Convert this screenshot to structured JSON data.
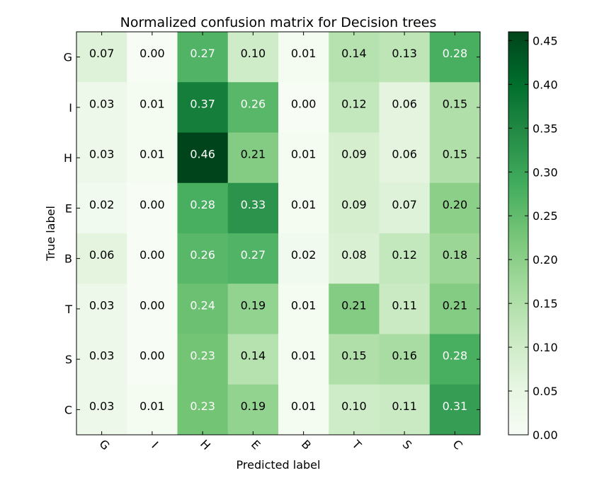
{
  "chart_data": {
    "type": "heatmap",
    "title": "Normalized confusion matrix for Decision trees",
    "xlabel": "Predicted label",
    "ylabel": "True label",
    "x_categories": [
      "G",
      "I",
      "H",
      "E",
      "B",
      "T",
      "S",
      "C"
    ],
    "y_categories": [
      "G",
      "I",
      "H",
      "E",
      "B",
      "T",
      "S",
      "C"
    ],
    "values": [
      [
        0.07,
        0.0,
        0.27,
        0.1,
        0.01,
        0.14,
        0.13,
        0.28
      ],
      [
        0.03,
        0.01,
        0.37,
        0.26,
        0.0,
        0.12,
        0.06,
        0.15
      ],
      [
        0.03,
        0.01,
        0.46,
        0.21,
        0.01,
        0.09,
        0.06,
        0.15
      ],
      [
        0.02,
        0.0,
        0.28,
        0.33,
        0.01,
        0.09,
        0.07,
        0.2
      ],
      [
        0.06,
        0.0,
        0.26,
        0.27,
        0.02,
        0.08,
        0.12,
        0.18
      ],
      [
        0.03,
        0.0,
        0.24,
        0.19,
        0.01,
        0.21,
        0.11,
        0.21
      ],
      [
        0.03,
        0.0,
        0.23,
        0.14,
        0.01,
        0.15,
        0.16,
        0.28
      ],
      [
        0.03,
        0.01,
        0.23,
        0.19,
        0.01,
        0.1,
        0.11,
        0.31
      ]
    ],
    "colorbar": {
      "range": [
        0.0,
        0.46
      ],
      "ticks": [
        "0.00",
        "0.05",
        "0.10",
        "0.15",
        "0.20",
        "0.25",
        "0.30",
        "0.35",
        "0.40",
        "0.45"
      ],
      "colormap": "Greens"
    },
    "grid": false
  }
}
